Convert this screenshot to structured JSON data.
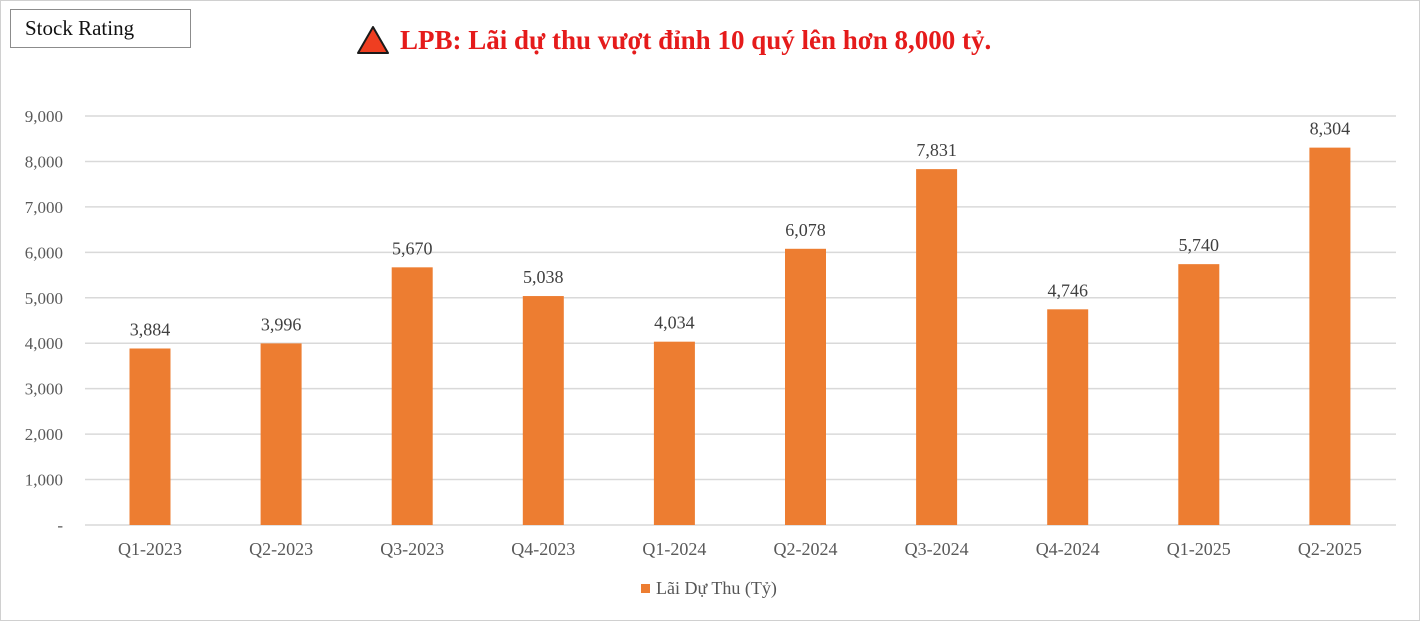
{
  "badge": {
    "label": "Stock Rating"
  },
  "title": {
    "text": "LPB: Lãi dự thu vượt đỉnh 10 quý lên hơn 8,000 tỷ.",
    "icon": "warning-triangle-icon"
  },
  "colors": {
    "bar": "#ed7d31",
    "title": "#e51b1b",
    "icon_fill": "#ef3e21",
    "grid": "#d9d9d9",
    "text": "#595959"
  },
  "chart_data": {
    "type": "bar",
    "title": "LPB: Lãi dự thu vượt đỉnh 10 quý lên hơn 8,000 tỷ.",
    "categories": [
      "Q1-2023",
      "Q2-2023",
      "Q3-2023",
      "Q4-2023",
      "Q1-2024",
      "Q2-2024",
      "Q3-2024",
      "Q4-2024",
      "Q1-2025",
      "Q2-2025"
    ],
    "series": [
      {
        "name": "Lãi Dự Thu (Tỷ)",
        "values": [
          3884,
          3996,
          5670,
          5038,
          4034,
          6078,
          7831,
          4746,
          5740,
          8304
        ]
      }
    ],
    "value_labels": [
      "3,884",
      "3,996",
      "5,670",
      "5,038",
      "4,034",
      "6,078",
      "7,831",
      "4,746",
      "5,740",
      "8,304"
    ],
    "ylim": [
      0,
      9000
    ],
    "yticks": [
      0,
      1000,
      2000,
      3000,
      4000,
      5000,
      6000,
      7000,
      8000,
      9000
    ],
    "ytick_labels": [
      "-",
      "1,000",
      "2,000",
      "3,000",
      "4,000",
      "5,000",
      "6,000",
      "7,000",
      "8,000",
      "9,000"
    ],
    "xlabel": "",
    "ylabel": "",
    "grid": true,
    "legend": "bottom-center"
  }
}
